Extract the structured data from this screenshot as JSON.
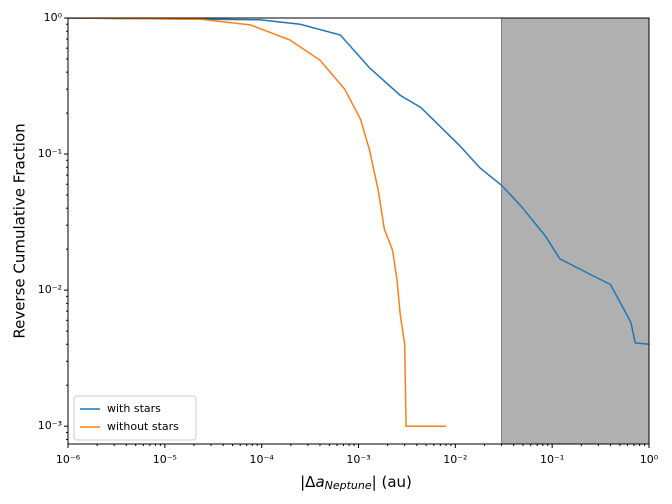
{
  "chart_data": {
    "type": "line",
    "xlabel": [
      "|Δ",
      "a",
      "Neptune",
      "| (au)"
    ],
    "ylabel": "Reverse Cumulative Fraction",
    "xscale": "log",
    "yscale": "log",
    "xlim": [
      1e-06,
      1
    ],
    "ylim": [
      0.00074,
      1
    ],
    "xticks": [
      {
        "value": 1e-06,
        "label": "10⁻⁶"
      },
      {
        "value": 1e-05,
        "label": "10⁻⁵"
      },
      {
        "value": 0.0001,
        "label": "10⁻⁴"
      },
      {
        "value": 0.001,
        "label": "10⁻³"
      },
      {
        "value": 0.01,
        "label": "10⁻²"
      },
      {
        "value": 0.1,
        "label": "10⁻¹"
      },
      {
        "value": 1,
        "label": "10⁰"
      }
    ],
    "yticks": [
      {
        "value": 0.001,
        "label": "10⁻³"
      },
      {
        "value": 0.01,
        "label": "10⁻²"
      },
      {
        "value": 0.1,
        "label": "10⁻¹"
      },
      {
        "value": 1,
        "label": "10⁰"
      }
    ],
    "shade_xlim": [
      0.03,
      1
    ],
    "shade_color": "#b0b0b0",
    "legend": "lower left",
    "series": [
      {
        "name": "with stars",
        "color": "#1f77b4",
        "x": [
          1e-06,
          9.5e-05,
          0.00025,
          0.00065,
          0.0013,
          0.0027,
          0.0044,
          0.011,
          0.018,
          0.03,
          0.047,
          0.085,
          0.12,
          0.25,
          0.4,
          0.5,
          0.65,
          0.72,
          1
        ],
        "values": [
          1,
          0.97,
          0.9,
          0.75,
          0.43,
          0.27,
          0.22,
          0.116,
          0.079,
          0.059,
          0.042,
          0.025,
          0.017,
          0.013,
          0.011,
          0.0082,
          0.0058,
          0.0041,
          0.004
        ]
      },
      {
        "name": "without stars",
        "color": "#ff7f0e",
        "x": [
          1e-06,
          2.3e-05,
          7.6e-05,
          0.000195,
          0.0004,
          0.00072,
          0.00105,
          0.0013,
          0.0016,
          0.00185,
          0.00225,
          0.0025,
          0.0027,
          0.003,
          0.0031,
          0.008
        ],
        "values": [
          1,
          0.98,
          0.89,
          0.69,
          0.49,
          0.3,
          0.18,
          0.107,
          0.054,
          0.028,
          0.0196,
          0.0118,
          0.0066,
          0.004,
          0.001,
          0.001
        ]
      }
    ]
  }
}
